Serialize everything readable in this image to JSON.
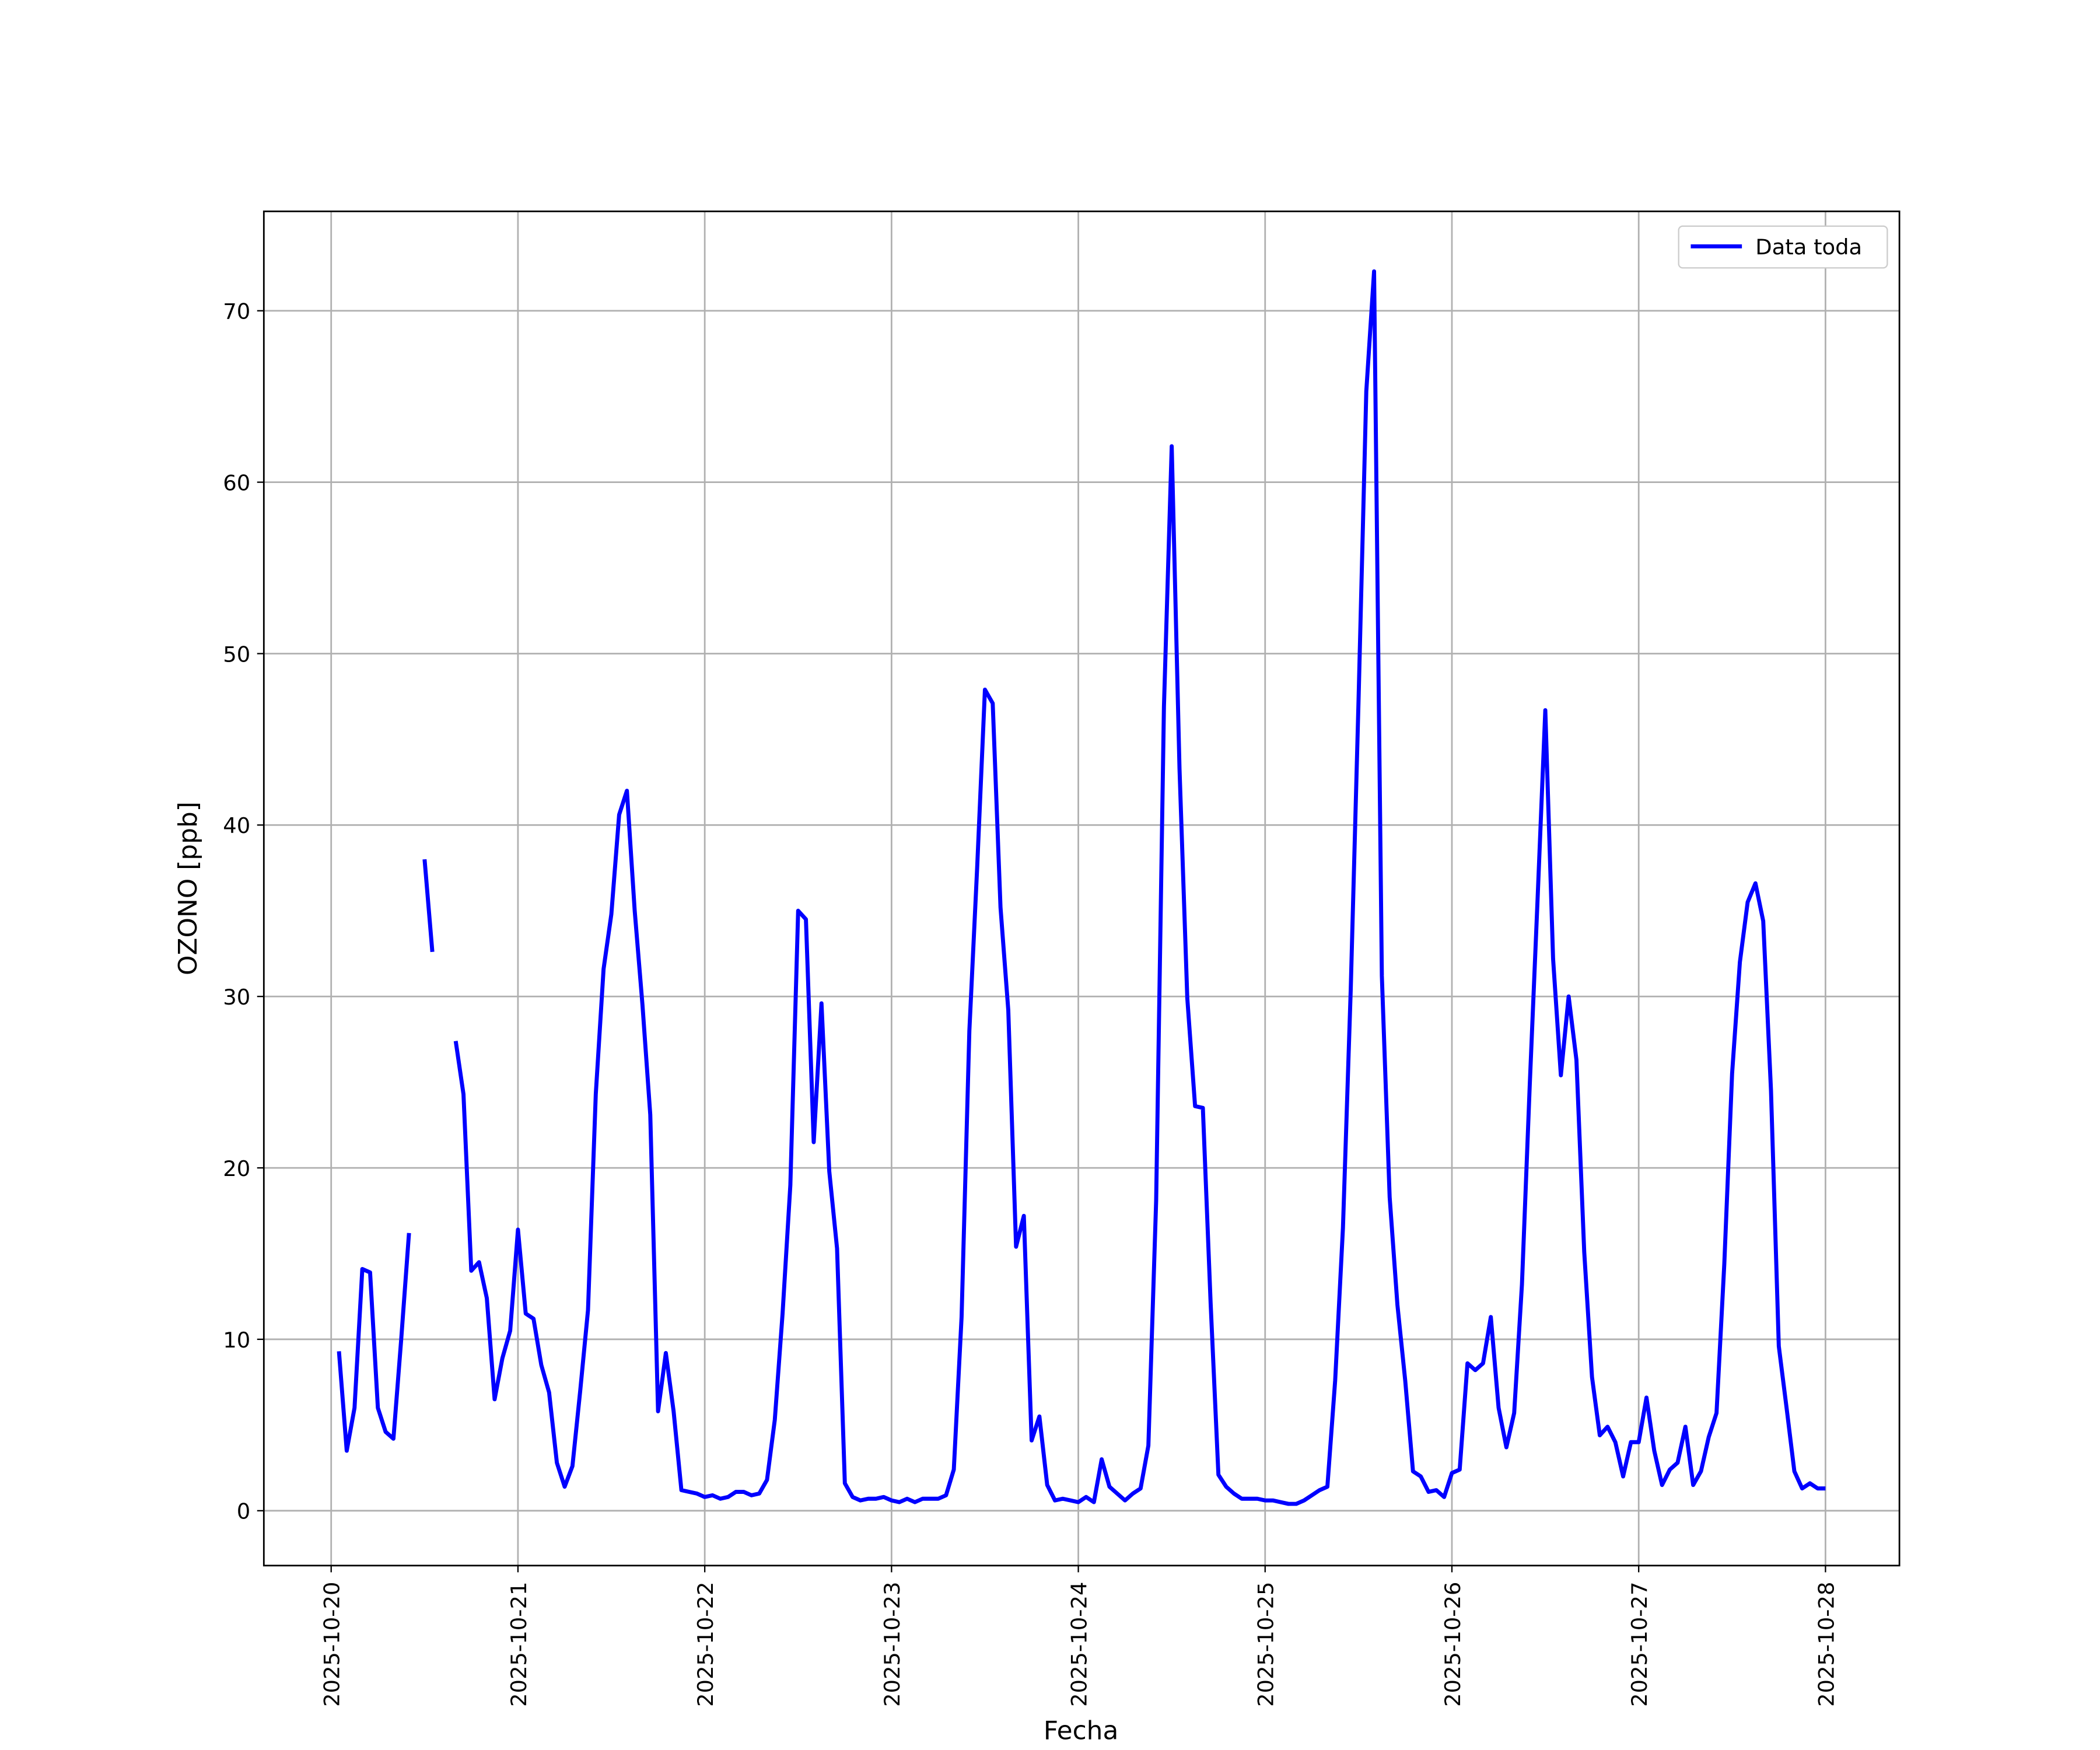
{
  "chart_data": {
    "type": "line",
    "xlabel": "Fecha",
    "ylabel": "OZONO [ppb]",
    "legend": "upper right",
    "grid": true,
    "xlim": [
      "2025-10-19 15:21",
      "2025-10-28 09:30"
    ],
    "ylim": [
      -3.2,
      75.8
    ],
    "xticks": [
      "2025-10-20",
      "2025-10-21",
      "2025-10-22",
      "2025-10-23",
      "2025-10-24",
      "2025-10-25",
      "2025-10-26",
      "2025-10-27",
      "2025-10-28"
    ],
    "yticks": [
      0,
      10,
      20,
      30,
      40,
      50,
      60,
      70
    ],
    "x": [
      "2025-10-20 01:00",
      "2025-10-20 02:00",
      "2025-10-20 03:00",
      "2025-10-20 04:00",
      "2025-10-20 05:00",
      "2025-10-20 06:00",
      "2025-10-20 07:00",
      "2025-10-20 08:00",
      "2025-10-20 09:00",
      "2025-10-20 10:00",
      "2025-10-20 11:00",
      "2025-10-20 12:00",
      "2025-10-20 13:00",
      "2025-10-20 14:00",
      "2025-10-20 15:00",
      "2025-10-20 16:00",
      "2025-10-20 17:00",
      "2025-10-20 18:00",
      "2025-10-20 19:00",
      "2025-10-20 20:00",
      "2025-10-20 21:00",
      "2025-10-20 22:00",
      "2025-10-20 23:00",
      "2025-10-21 00:00",
      "2025-10-21 01:00",
      "2025-10-21 02:00",
      "2025-10-21 03:00",
      "2025-10-21 04:00",
      "2025-10-21 05:00",
      "2025-10-21 06:00",
      "2025-10-21 07:00",
      "2025-10-21 08:00",
      "2025-10-21 09:00",
      "2025-10-21 10:00",
      "2025-10-21 11:00",
      "2025-10-21 12:00",
      "2025-10-21 13:00",
      "2025-10-21 14:00",
      "2025-10-21 15:00",
      "2025-10-21 16:00",
      "2025-10-21 17:00",
      "2025-10-21 18:00",
      "2025-10-21 19:00",
      "2025-10-21 20:00",
      "2025-10-21 21:00",
      "2025-10-21 22:00",
      "2025-10-21 23:00",
      "2025-10-22 00:00",
      "2025-10-22 01:00",
      "2025-10-22 02:00",
      "2025-10-22 03:00",
      "2025-10-22 04:00",
      "2025-10-22 05:00",
      "2025-10-22 06:00",
      "2025-10-22 07:00",
      "2025-10-22 08:00",
      "2025-10-22 09:00",
      "2025-10-22 10:00",
      "2025-10-22 11:00",
      "2025-10-22 12:00",
      "2025-10-22 13:00",
      "2025-10-22 14:00",
      "2025-10-22 15:00",
      "2025-10-22 16:00",
      "2025-10-22 17:00",
      "2025-10-22 18:00",
      "2025-10-22 19:00",
      "2025-10-22 20:00",
      "2025-10-22 21:00",
      "2025-10-22 22:00",
      "2025-10-22 23:00",
      "2025-10-23 00:00",
      "2025-10-23 01:00",
      "2025-10-23 02:00",
      "2025-10-23 03:00",
      "2025-10-23 04:00",
      "2025-10-23 05:00",
      "2025-10-23 06:00",
      "2025-10-23 07:00",
      "2025-10-23 08:00",
      "2025-10-23 09:00",
      "2025-10-23 10:00",
      "2025-10-23 11:00",
      "2025-10-23 12:00",
      "2025-10-23 13:00",
      "2025-10-23 14:00",
      "2025-10-23 15:00",
      "2025-10-23 16:00",
      "2025-10-23 17:00",
      "2025-10-23 18:00",
      "2025-10-23 19:00",
      "2025-10-23 20:00",
      "2025-10-23 21:00",
      "2025-10-23 22:00",
      "2025-10-23 23:00",
      "2025-10-24 00:00",
      "2025-10-24 01:00",
      "2025-10-24 02:00",
      "2025-10-24 03:00",
      "2025-10-24 04:00",
      "2025-10-24 05:00",
      "2025-10-24 06:00",
      "2025-10-24 07:00",
      "2025-10-24 08:00",
      "2025-10-24 09:00",
      "2025-10-24 10:00",
      "2025-10-24 11:00",
      "2025-10-24 12:00",
      "2025-10-24 13:00",
      "2025-10-24 14:00",
      "2025-10-24 15:00",
      "2025-10-24 16:00",
      "2025-10-24 17:00",
      "2025-10-24 18:00",
      "2025-10-24 19:00",
      "2025-10-24 20:00",
      "2025-10-24 21:00",
      "2025-10-24 22:00",
      "2025-10-24 23:00",
      "2025-10-25 00:00",
      "2025-10-25 01:00",
      "2025-10-25 02:00",
      "2025-10-25 03:00",
      "2025-10-25 04:00",
      "2025-10-25 05:00",
      "2025-10-25 06:00",
      "2025-10-25 07:00",
      "2025-10-25 08:00",
      "2025-10-25 09:00",
      "2025-10-25 10:00",
      "2025-10-25 11:00",
      "2025-10-25 12:00",
      "2025-10-25 13:00",
      "2025-10-25 14:00",
      "2025-10-25 15:00",
      "2025-10-25 16:00",
      "2025-10-25 17:00",
      "2025-10-25 18:00",
      "2025-10-25 19:00",
      "2025-10-25 20:00",
      "2025-10-25 21:00",
      "2025-10-25 22:00",
      "2025-10-25 23:00",
      "2025-10-26 00:00",
      "2025-10-26 01:00",
      "2025-10-26 02:00",
      "2025-10-26 03:00",
      "2025-10-26 04:00",
      "2025-10-26 05:00",
      "2025-10-26 06:00",
      "2025-10-26 07:00",
      "2025-10-26 08:00",
      "2025-10-26 09:00",
      "2025-10-26 10:00",
      "2025-10-26 11:00",
      "2025-10-26 12:00",
      "2025-10-26 13:00",
      "2025-10-26 14:00",
      "2025-10-26 15:00",
      "2025-10-26 16:00",
      "2025-10-26 17:00",
      "2025-10-26 18:00",
      "2025-10-26 19:00",
      "2025-10-26 20:00",
      "2025-10-26 21:00",
      "2025-10-26 22:00",
      "2025-10-26 23:00",
      "2025-10-27 00:00",
      "2025-10-27 01:00",
      "2025-10-27 02:00",
      "2025-10-27 03:00",
      "2025-10-27 04:00",
      "2025-10-27 05:00",
      "2025-10-27 06:00",
      "2025-10-27 07:00",
      "2025-10-27 08:00",
      "2025-10-27 09:00",
      "2025-10-27 10:00",
      "2025-10-27 11:00",
      "2025-10-27 12:00",
      "2025-10-27 13:00",
      "2025-10-27 14:00",
      "2025-10-27 15:00",
      "2025-10-27 16:00",
      "2025-10-27 17:00",
      "2025-10-27 18:00",
      "2025-10-27 19:00",
      "2025-10-27 20:00",
      "2025-10-27 21:00",
      "2025-10-27 22:00",
      "2025-10-27 23:00",
      "2025-10-28 00:00"
    ],
    "series": [
      {
        "name": "Data toda",
        "color": "#0000ff",
        "values": [
          9.3,
          3.5,
          6,
          14.1,
          13.9,
          6,
          4.6,
          4.2,
          10,
          16.2,
          null,
          38,
          32.6,
          null,
          null,
          27.4,
          24.3,
          14,
          14.5,
          12.4,
          6.5,
          8.9,
          10.5,
          16.4,
          11.5,
          11.2,
          8.5,
          6.9,
          2.8,
          1.4,
          2.6,
          7,
          11.7,
          24.3,
          31.6,
          34.8,
          40.6,
          42,
          35,
          29.5,
          23.1,
          5.8,
          9.2,
          5.8,
          1.2,
          1.1,
          1,
          0.8,
          0.9,
          0.7,
          0.8,
          1.1,
          1.1,
          0.9,
          1,
          1.8,
          5.3,
          11.5,
          19,
          35,
          34.5,
          21.5,
          29.6,
          19.8,
          15.3,
          1.6,
          0.8,
          0.6,
          0.7,
          0.7,
          0.8,
          0.6,
          0.5,
          0.7,
          0.5,
          0.7,
          0.7,
          0.7,
          0.9,
          2.4,
          11.3,
          28,
          37.5,
          47.9,
          47.1,
          35.2,
          29.2,
          15.4,
          17.2,
          4.1,
          5.5,
          1.5,
          0.6,
          0.7,
          0.6,
          0.5,
          0.8,
          0.5,
          3,
          1.4,
          1,
          0.6,
          1,
          1.3,
          3.8,
          18.1,
          46.9,
          62.1,
          43.3,
          29.9,
          23.6,
          23.5,
          12.1,
          2.1,
          1.4,
          1,
          0.7,
          0.7,
          0.7,
          0.6,
          0.6,
          0.5,
          0.4,
          0.4,
          0.6,
          0.9,
          1.2,
          1.4,
          7.6,
          16.5,
          30.4,
          47.2,
          65.3,
          72.3,
          31.2,
          18.3,
          12,
          7.6,
          2.3,
          2,
          1.1,
          1.2,
          0.8,
          2.2,
          2.4,
          8.6,
          8.2,
          8.6,
          11.3,
          6,
          3.7,
          5.7,
          13.2,
          24.8,
          35.6,
          46.7,
          32.2,
          25.4,
          30,
          26.3,
          15.1,
          7.8,
          4.4,
          4.9,
          4,
          2,
          4,
          4,
          6.6,
          3.5,
          1.5,
          2.4,
          2.8,
          4.9,
          1.5,
          2.3,
          4.3,
          5.7,
          14.4,
          25.5,
          32,
          35.5,
          36.6,
          34.4,
          24.5,
          9.6,
          6,
          2.3,
          1.3,
          1.6,
          1.3,
          1.3
        ]
      }
    ]
  }
}
